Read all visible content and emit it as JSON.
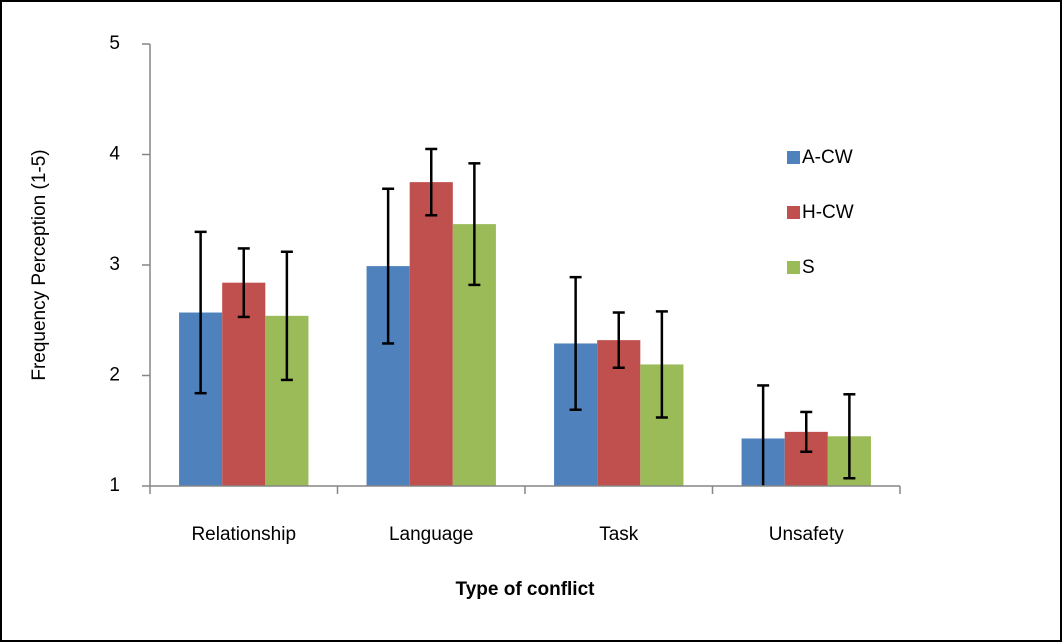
{
  "chart_data": {
    "type": "bar",
    "xlabel": "Type of conflict",
    "ylabel": "Frequency Perception (1-5)",
    "categories": [
      "Relationship",
      "Language",
      "Task",
      "Unsafety"
    ],
    "series": [
      {
        "name": "A-CW",
        "color": "#4f81bd",
        "values": [
          2.57,
          2.99,
          2.29,
          1.43
        ],
        "errors": [
          0.73,
          0.7,
          0.6,
          0.48
        ]
      },
      {
        "name": "H-CW",
        "color": "#c0504d",
        "values": [
          2.84,
          3.75,
          2.32,
          1.49
        ],
        "errors": [
          0.31,
          0.3,
          0.25,
          0.18
        ]
      },
      {
        "name": "S",
        "color": "#9bbb59",
        "values": [
          2.54,
          3.37,
          2.1,
          1.45
        ],
        "errors": [
          0.58,
          0.55,
          0.48,
          0.38
        ]
      }
    ],
    "ylim": [
      1,
      5
    ],
    "yticks": [
      1,
      2,
      3,
      4,
      5
    ],
    "legend": "right"
  }
}
